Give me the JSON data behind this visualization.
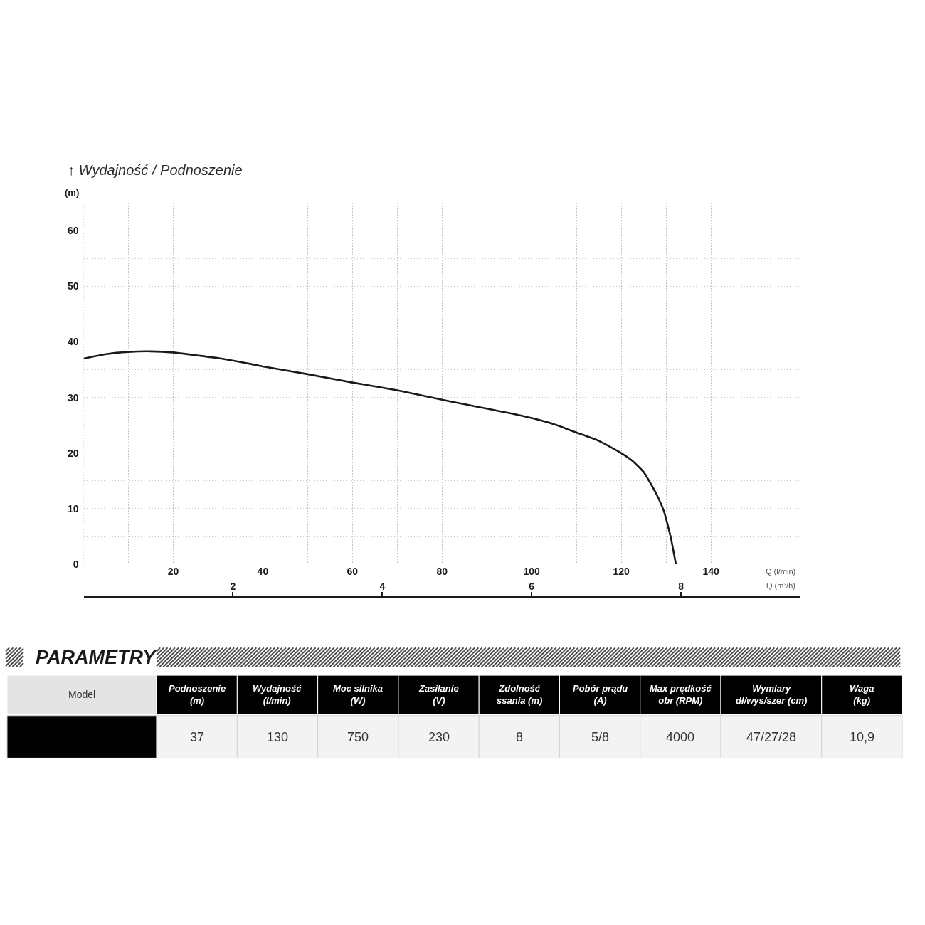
{
  "chart_data": [
    {
      "type": "line",
      "title": "↑ Wydajność / Podnoszenie",
      "ylabel": "(m)",
      "xlabel": "Q (l/min)",
      "x2label": "Q (m³/h)",
      "x": [
        0,
        5,
        10,
        15,
        20,
        25,
        30,
        35,
        40,
        50,
        60,
        70,
        80,
        85,
        90,
        95,
        100,
        105,
        110,
        115,
        120,
        122.5,
        125,
        126,
        127,
        128,
        129,
        129.5,
        130.3,
        131,
        131.6,
        132.2
      ],
      "series": [
        {
          "color": "#1a1a1a",
          "values": [
            37.0,
            37.8,
            38.2,
            38.3,
            38.1,
            37.6,
            37.1,
            36.4,
            35.6,
            34.2,
            32.7,
            31.3,
            29.6,
            28.8,
            28.0,
            27.2,
            26.3,
            25.2,
            23.7,
            22.2,
            20.0,
            18.6,
            16.6,
            15.3,
            13.9,
            12.4,
            10.6,
            9.6,
            7.3,
            5.0,
            2.6,
            0
          ]
        }
      ],
      "xlim": [
        0,
        160
      ],
      "xticks": [
        {
          "value": 0,
          "label": null
        },
        {
          "value": 10,
          "label": null
        },
        20,
        {
          "value": 30,
          "label": null
        },
        40,
        {
          "value": 50,
          "label": null
        },
        60,
        {
          "value": 70,
          "label": null
        },
        80,
        {
          "value": 90,
          "label": null
        },
        100,
        {
          "value": 110,
          "label": null
        },
        120,
        {
          "value": 130,
          "label": null
        },
        140,
        {
          "value": 150,
          "label": null
        },
        {
          "value": 160,
          "label": null
        }
      ],
      "ylim": [
        0,
        65
      ],
      "yticks": [
        0,
        {
          "value": 5,
          "label": null
        },
        10,
        {
          "value": 15,
          "label": null
        },
        20,
        {
          "value": 25,
          "label": null
        },
        30,
        {
          "value": 35,
          "label": null
        },
        40,
        {
          "value": 45,
          "label": null
        },
        50,
        {
          "value": 55,
          "label": null
        },
        60,
        {
          "value": 65,
          "label": null
        }
      ],
      "x2lim": [
        0,
        9.6
      ],
      "x2ticks": [
        2,
        4,
        6,
        8
      ],
      "grid": true
    },
    {
      "type": "other",
      "title": "PARAMETRY",
      "categories": [
        "Model",
        "Podnoszenie\n(m)",
        "Wydajność\n(l/min)",
        "Moc silnika\n(W)",
        "Zasilanie\n(V)",
        "Zdolność\nssania (m)",
        "Pobór prądu\n(A)",
        "Max prędkość\nobr (RPM)",
        "Wymiary\ndł/wys/szer (cm)",
        "Waga\n(kg)"
      ],
      "cell_labels": [
        [
          null,
          "37",
          "130",
          "750",
          "230",
          "8",
          "5/8",
          "4000",
          "47/27/28",
          "10,9"
        ]
      ]
    }
  ]
}
